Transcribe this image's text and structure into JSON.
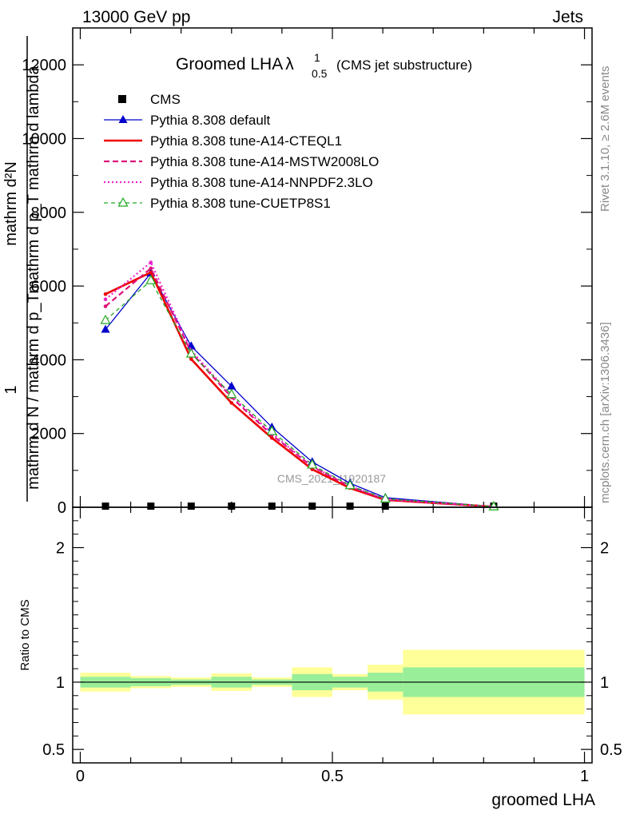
{
  "header": {
    "left": "13000 GeV pp",
    "right": "Jets"
  },
  "side_labels": {
    "rivet": "Rivet 3.1.10, ≥ 2.6M events",
    "mcplots": "mcplots.cern.ch [arXiv:1306.3436]"
  },
  "watermark": "CMS_2021_I1920187",
  "chart_data": [
    {
      "type": "line",
      "title": "Groomed LHA",
      "title_symbol": "λ",
      "title_sup": "1",
      "title_sub": "0.5",
      "title_suffix": "(CMS jet substructure)",
      "ylabel_top": "mathrm d²N",
      "ylabel_bottom": "mathrm d p_T mathrm d lambda",
      "ylabel_prefix": "1",
      "ylabel_mid": "mathrm d N / mathrm d p_T",
      "ylim": [
        0,
        13000
      ],
      "yticks": [
        0,
        2000,
        4000,
        6000,
        8000,
        10000,
        12000
      ],
      "ytick_labels": [
        "0",
        "2000",
        "4000",
        "6000",
        "8000",
        "10000",
        "12000"
      ],
      "xlim": [
        -0.015,
        1.015
      ],
      "x": [
        0.05,
        0.14,
        0.22,
        0.3,
        0.38,
        0.46,
        0.535,
        0.605,
        0.82
      ],
      "legend_position": "top-left",
      "series": [
        {
          "name": "CMS",
          "color": "#000000",
          "style": "square",
          "values": [
            30,
            30,
            30,
            30,
            30,
            30,
            30,
            30,
            30
          ]
        },
        {
          "name": "Pythia 8.308 default",
          "color": "#0000cc",
          "style": "solid-thin",
          "marker": "triangle",
          "values": [
            4820,
            6350,
            4370,
            3280,
            2170,
            1230,
            650,
            260,
            20
          ]
        },
        {
          "name": "Pythia 8.308 tune-A14-CTEQL1",
          "color": "#ee0000",
          "style": "solid-thick",
          "marker": "dot",
          "values": [
            5780,
            6370,
            4020,
            2830,
            1880,
            1030,
            520,
            200,
            15
          ]
        },
        {
          "name": "Pythia 8.308 tune-A14-MSTW2008LO",
          "color": "#dd1177",
          "style": "dashed",
          "marker": "dot",
          "values": [
            5450,
            6480,
            4200,
            2980,
            1960,
            1100,
            560,
            210,
            15
          ]
        },
        {
          "name": "Pythia 8.308 tune-A14-NNPDF2.3LO",
          "color": "#ee22cc",
          "style": "dotted",
          "marker": "dot",
          "values": [
            5640,
            6640,
            4250,
            3020,
            2000,
            1110,
            570,
            220,
            15
          ]
        },
        {
          "name": "Pythia 8.308 tune-CUETP8S1",
          "color": "#22aa22",
          "style": "dashed-thin",
          "marker": "open-triangle",
          "values": [
            5070,
            6150,
            4160,
            3060,
            2060,
            1150,
            590,
            230,
            17
          ]
        }
      ]
    },
    {
      "type": "area",
      "ylabel": "Ratio to CMS",
      "xlabel": "groomed LHA",
      "ylim": [
        0.4,
        2.3
      ],
      "yticks": [
        0.5,
        1,
        2
      ],
      "ytick_labels": [
        "0.5",
        "1",
        "2"
      ],
      "xticks": [
        0,
        0.5,
        1
      ],
      "xtick_labels": [
        "0",
        "0.5",
        "1"
      ],
      "bins": [
        0,
        0.1,
        0.18,
        0.26,
        0.34,
        0.42,
        0.5,
        0.57,
        0.64,
        1.0
      ],
      "band_inner": {
        "color": "#99ee99",
        "low": [
          0.96,
          0.97,
          0.98,
          0.96,
          0.98,
          0.94,
          0.96,
          0.93,
          0.89
        ],
        "high": [
          1.04,
          1.03,
          1.02,
          1.04,
          1.02,
          1.06,
          1.04,
          1.07,
          1.11
        ]
      },
      "band_outer": {
        "color": "#ffff99",
        "low": [
          0.93,
          0.955,
          0.965,
          0.935,
          0.965,
          0.89,
          0.94,
          0.87,
          0.76
        ],
        "high": [
          1.07,
          1.045,
          1.035,
          1.065,
          1.035,
          1.11,
          1.06,
          1.13,
          1.24
        ]
      },
      "reference": 1
    }
  ]
}
